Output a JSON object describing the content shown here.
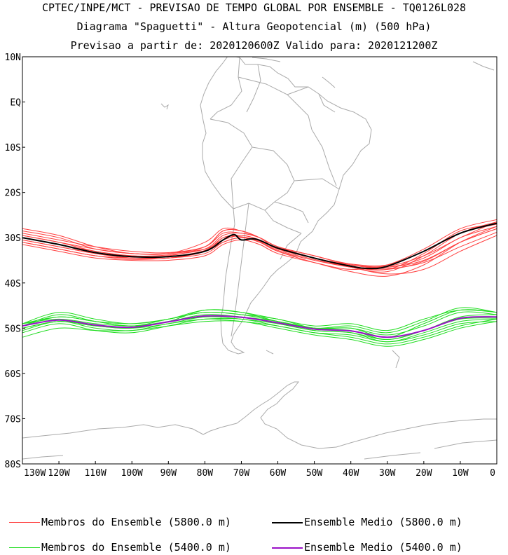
{
  "header": {
    "line1": "CPTEC/INPE/MCT - PREVISAO DE TEMPO GLOBAL POR ENSEMBLE - TQ0126L028",
    "line2": "Diagrama \"Spaguetti\" - Altura Geopotencial (m) (500 hPa)",
    "line3": "Previsao a partir de: 2020120600Z  Valido para: 2020121200Z"
  },
  "chart_data": {
    "type": "line",
    "lat_ticks": [
      "10N",
      "EQ",
      "10S",
      "20S",
      "30S",
      "40S",
      "50S",
      "60S",
      "70S",
      "80S"
    ],
    "lon_ticks": [
      "130W",
      "120W",
      "110W",
      "100W",
      "90W",
      "80W",
      "70W",
      "60W",
      "50W",
      "40W",
      "30W",
      "20W",
      "10W",
      "0"
    ],
    "xlim": [
      -130,
      0
    ],
    "ylim": [
      -80,
      10
    ],
    "grid": false,
    "colors": {
      "member_5800": "#ff4040",
      "mean_5800": "#000000",
      "member_5400": "#20dd20",
      "mean_5400": "#9b11c8",
      "coast": "#aaaaaa"
    },
    "series": [
      {
        "name": "Ensemble Medio (5800.0 m)",
        "x": [
          -130,
          -120,
          -110,
          -100,
          -90,
          -80,
          -75,
          -72,
          -70,
          -66,
          -60,
          -50,
          -40,
          -35,
          -30,
          -20,
          -10,
          0
        ],
        "y": [
          -30,
          -31.5,
          -33.3,
          -34.2,
          -34.2,
          -33,
          -30.5,
          -29.3,
          -30.5,
          -30.3,
          -32.3,
          -34.5,
          -36.3,
          -36.8,
          -36.3,
          -33,
          -29,
          -26.8
        ]
      },
      {
        "name": "Ensemble Medio (5400.0 m)",
        "x": [
          -130,
          -120,
          -110,
          -100,
          -90,
          -80,
          -70,
          -60,
          -50,
          -40,
          -30,
          -20,
          -10,
          0
        ],
        "y": [
          -49.5,
          -48.2,
          -49.3,
          -49.8,
          -48.6,
          -47.3,
          -47.6,
          -48.8,
          -50.2,
          -50.6,
          -52,
          -50.5,
          -47.8,
          -47.5
        ]
      }
    ],
    "members_5800": [
      [
        -29.5,
        -31,
        -32.5,
        -33.5,
        -33.5,
        -32.5,
        -30.5,
        -29.5,
        -30.5,
        -32.5,
        -34.5,
        -36,
        -36.5,
        -34.5,
        -30,
        -27.5
      ],
      [
        -31,
        -32.5,
        -34,
        -34.8,
        -34.5,
        -33.5,
        -31,
        -30,
        -31,
        -33,
        -35,
        -36.5,
        -37,
        -33.5,
        -28.5,
        -27
      ],
      [
        -28.5,
        -30,
        -32.5,
        -33.5,
        -33.5,
        -31,
        -28,
        -28.5,
        -30,
        -32,
        -34,
        -36,
        -36.5,
        -35,
        -31,
        -28
      ],
      [
        -30.5,
        -32,
        -33.5,
        -34.5,
        -34.5,
        -33,
        -30,
        -29.5,
        -30.5,
        -32.5,
        -34.5,
        -36.5,
        -37.5,
        -34,
        -29,
        -26.5
      ],
      [
        -29,
        -30.5,
        -32,
        -33,
        -33.3,
        -32,
        -29,
        -29,
        -30,
        -32,
        -34,
        -36,
        -36.8,
        -35.5,
        -32,
        -28.8
      ],
      [
        -31.5,
        -33,
        -34.5,
        -35,
        -35,
        -34,
        -31.5,
        -30.5,
        -31.5,
        -33.5,
        -35.5,
        -37,
        -36,
        -32.5,
        -28,
        -26
      ],
      [
        -30,
        -31.5,
        -33,
        -34,
        -34,
        -32,
        -28.5,
        -28.5,
        -30,
        -32,
        -34.5,
        -36.5,
        -38,
        -37,
        -33,
        -29.5
      ],
      [
        -29.5,
        -31,
        -33,
        -34,
        -33.8,
        -32.5,
        -29.5,
        -29,
        -30,
        -32,
        -34,
        -35.8,
        -36,
        -33,
        -29,
        -27
      ],
      [
        -30.5,
        -32,
        -33.5,
        -34.5,
        -34.2,
        -32.8,
        -30,
        -29.8,
        -30.8,
        -32.8,
        -34.8,
        -36.5,
        -37,
        -35.2,
        -31,
        -28
      ],
      [
        -28,
        -29.5,
        -32,
        -33.5,
        -33.5,
        -32,
        -28.5,
        -28.5,
        -30,
        -32.5,
        -34.5,
        -36,
        -36.3,
        -34,
        -30,
        -26.5
      ],
      [
        -31,
        -32.5,
        -34,
        -34.5,
        -34.5,
        -33,
        -31,
        -30,
        -31,
        -33,
        -35.5,
        -37.5,
        -38.5,
        -36,
        -31,
        -27.5
      ]
    ],
    "members_5400": [
      [
        -49,
        -47.5,
        -48.5,
        -49.5,
        -48,
        -46.5,
        -47,
        -48.5,
        -50,
        -50,
        -52,
        -49,
        -46,
        -46.5
      ],
      [
        -50,
        -48.5,
        -49.5,
        -50,
        -49,
        -47.5,
        -48,
        -49,
        -50.5,
        -51,
        -53,
        -51,
        -48.5,
        -48
      ],
      [
        -49.5,
        -47,
        -48.5,
        -49.5,
        -48.5,
        -46,
        -46.5,
        -48.5,
        -50,
        -49.5,
        -51,
        -48.5,
        -45.5,
        -46.5
      ],
      [
        -50.5,
        -48.5,
        -50,
        -50.5,
        -49,
        -48,
        -48,
        -49.5,
        -51,
        -51.5,
        -53,
        -51.5,
        -49,
        -48.5
      ],
      [
        -49,
        -48,
        -49,
        -49.5,
        -48.5,
        -47,
        -47.5,
        -48.5,
        -50,
        -50.5,
        -52.5,
        -50.5,
        -47.5,
        -47
      ],
      [
        -51,
        -49,
        -50.5,
        -51,
        -49.5,
        -48,
        -48.5,
        -49.5,
        -51,
        -52,
        -53.5,
        -52,
        -49.5,
        -48
      ],
      [
        -49.5,
        -47.5,
        -48.5,
        -49,
        -48,
        -46.5,
        -47,
        -48,
        -50,
        -50,
        -51.5,
        -49.5,
        -46.5,
        -47
      ],
      [
        -50,
        -48.5,
        -49.5,
        -50,
        -48.5,
        -47.5,
        -47.5,
        -49,
        -50.5,
        -51,
        -52.5,
        -50.5,
        -48,
        -47.8
      ],
      [
        -52,
        -50,
        -50.5,
        -50.5,
        -49.5,
        -48.5,
        -48.5,
        -50,
        -51.5,
        -52.5,
        -54,
        -52.5,
        -50,
        -48.5
      ],
      [
        -49,
        -46.5,
        -48,
        -49,
        -48,
        -46,
        -46.5,
        -48,
        -49.5,
        -49,
        -50.5,
        -48,
        -46,
        -46.5
      ]
    ],
    "legend": [
      {
        "label": "Membros do Ensemble (5800.0 m)",
        "color": "#ff4040"
      },
      {
        "label": "Ensemble Medio (5800.0 m)",
        "color": "#000000"
      },
      {
        "label": "Membros do Ensemble (5400.0 m)",
        "color": "#20dd20"
      },
      {
        "label": "Ensemble Medio (5400.0 m)",
        "color": "#9b11c8"
      }
    ]
  }
}
